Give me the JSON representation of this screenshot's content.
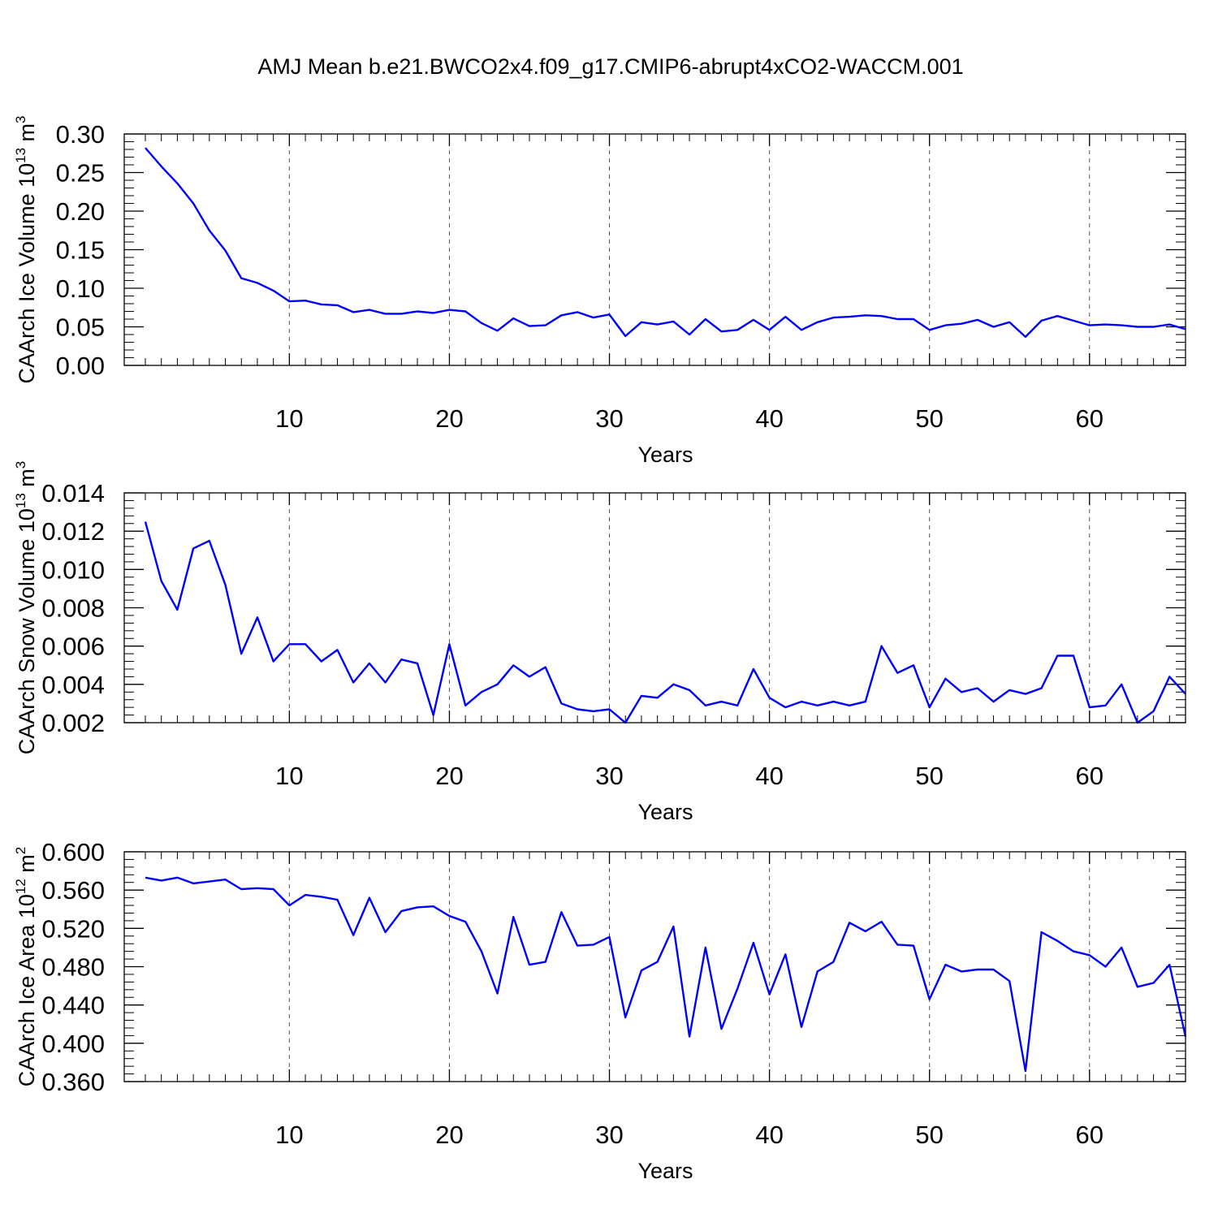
{
  "figure": {
    "title": "AMJ Mean b.e21.BWCO2x4.f09_g17.CMIP6-abrupt4xCO2-WACCM.001",
    "line_color": "#0000ff"
  },
  "chart_data": [
    {
      "type": "line",
      "ylabel_main": "CAArch Ice Volume 10",
      "ylabel_exp": "13",
      "ylabel_unit": "m",
      "ylabel_unit_exp": "3",
      "xlabel": "Years",
      "xlim": [
        1,
        66
      ],
      "ylim": [
        0,
        0.3
      ],
      "xticks": [
        10,
        20,
        30,
        40,
        50,
        60
      ],
      "xtick_labels": [
        "10",
        "20",
        "30",
        "40",
        "50",
        "60"
      ],
      "yticks": [
        0,
        0.05,
        0.1,
        0.15,
        0.2,
        0.25,
        0.3
      ],
      "ytick_labels": [
        "0.00",
        "0.05",
        "0.10",
        "0.15",
        "0.20",
        "0.25",
        "0.30"
      ],
      "grid": "vertical-dashed",
      "series": [
        {
          "x": [
            1,
            2,
            3,
            4,
            5,
            6,
            7,
            8,
            9,
            10,
            11,
            12,
            13,
            14,
            15,
            16,
            17,
            18,
            19,
            20,
            21,
            22,
            23,
            24,
            25,
            26,
            27,
            28,
            29,
            30,
            31,
            32,
            33,
            34,
            35,
            36,
            37,
            38,
            39,
            40,
            41,
            42,
            43,
            44,
            45,
            46,
            47,
            48,
            49,
            50,
            51,
            52,
            53,
            54,
            55,
            56,
            57,
            58,
            59,
            60,
            61,
            62,
            63,
            64,
            65,
            66
          ],
          "y": [
            0.282,
            0.258,
            0.236,
            0.21,
            0.175,
            0.149,
            0.113,
            0.107,
            0.097,
            0.083,
            0.084,
            0.079,
            0.078,
            0.069,
            0.072,
            0.067,
            0.067,
            0.07,
            0.068,
            0.072,
            0.07,
            0.055,
            0.045,
            0.061,
            0.051,
            0.052,
            0.065,
            0.069,
            0.062,
            0.066,
            0.038,
            0.056,
            0.053,
            0.057,
            0.04,
            0.06,
            0.044,
            0.046,
            0.059,
            0.046,
            0.063,
            0.046,
            0.056,
            0.062,
            0.063,
            0.065,
            0.064,
            0.06,
            0.06,
            0.046,
            0.052,
            0.054,
            0.059,
            0.05,
            0.056,
            0.037,
            0.058,
            0.064,
            0.058,
            0.052,
            0.053,
            0.052,
            0.05,
            0.05,
            0.053,
            0.047
          ]
        }
      ]
    },
    {
      "type": "line",
      "ylabel_main": "CAArch Snow Volume 10",
      "ylabel_exp": "13",
      "ylabel_unit": "m",
      "ylabel_unit_exp": "3",
      "xlabel": "Years",
      "xlim": [
        1,
        66
      ],
      "ylim": [
        0.002,
        0.014
      ],
      "xticks": [
        10,
        20,
        30,
        40,
        50,
        60
      ],
      "xtick_labels": [
        "10",
        "20",
        "30",
        "40",
        "50",
        "60"
      ],
      "yticks": [
        0.002,
        0.004,
        0.006,
        0.008,
        0.01,
        0.012,
        0.014
      ],
      "ytick_labels": [
        "0.002",
        "0.004",
        "0.006",
        "0.008",
        "0.010",
        "0.012",
        "0.014"
      ],
      "grid": "vertical-dashed",
      "series": [
        {
          "x": [
            1,
            2,
            3,
            4,
            5,
            6,
            7,
            8,
            9,
            10,
            11,
            12,
            13,
            14,
            15,
            16,
            17,
            18,
            19,
            20,
            21,
            22,
            23,
            24,
            25,
            26,
            27,
            28,
            29,
            30,
            31,
            32,
            33,
            34,
            35,
            36,
            37,
            38,
            39,
            40,
            41,
            42,
            43,
            44,
            45,
            46,
            47,
            48,
            49,
            50,
            51,
            52,
            53,
            54,
            55,
            56,
            57,
            58,
            59,
            60,
            61,
            62,
            63,
            64,
            65,
            66
          ],
          "y": [
            0.0125,
            0.0094,
            0.0079,
            0.0111,
            0.0115,
            0.0092,
            0.0056,
            0.0075,
            0.0052,
            0.0061,
            0.0061,
            0.0052,
            0.0058,
            0.0041,
            0.0051,
            0.0041,
            0.0053,
            0.0051,
            0.0024,
            0.0061,
            0.0029,
            0.0036,
            0.004,
            0.005,
            0.0044,
            0.0049,
            0.003,
            0.0027,
            0.0026,
            0.0027,
            0.002,
            0.0034,
            0.0033,
            0.004,
            0.0037,
            0.0029,
            0.0031,
            0.0029,
            0.0048,
            0.0033,
            0.0028,
            0.0031,
            0.0029,
            0.0031,
            0.0029,
            0.0031,
            0.006,
            0.0046,
            0.005,
            0.0028,
            0.0043,
            0.0036,
            0.0038,
            0.0031,
            0.0037,
            0.0035,
            0.0038,
            0.0055,
            0.0055,
            0.0028,
            0.0029,
            0.004,
            0.002,
            0.0026,
            0.0044,
            0.0035
          ]
        }
      ]
    },
    {
      "type": "line",
      "ylabel_main": "CAArch Ice Area 10",
      "ylabel_exp": "12",
      "ylabel_unit": "m",
      "ylabel_unit_exp": "2",
      "xlabel": "Years",
      "xlim": [
        1,
        66
      ],
      "ylim": [
        0.36,
        0.6
      ],
      "xticks": [
        10,
        20,
        30,
        40,
        50,
        60
      ],
      "xtick_labels": [
        "10",
        "20",
        "30",
        "40",
        "50",
        "60"
      ],
      "yticks": [
        0.36,
        0.4,
        0.44,
        0.48,
        0.52,
        0.56,
        0.6
      ],
      "ytick_labels": [
        "0.360",
        "0.400",
        "0.440",
        "0.480",
        "0.520",
        "0.560",
        "0.600"
      ],
      "grid": "vertical-dashed",
      "series": [
        {
          "x": [
            1,
            2,
            3,
            4,
            5,
            6,
            7,
            8,
            9,
            10,
            11,
            12,
            13,
            14,
            15,
            16,
            17,
            18,
            19,
            20,
            21,
            22,
            23,
            24,
            25,
            26,
            27,
            28,
            29,
            30,
            31,
            32,
            33,
            34,
            35,
            36,
            37,
            38,
            39,
            40,
            41,
            42,
            43,
            44,
            45,
            46,
            47,
            48,
            49,
            50,
            51,
            52,
            53,
            54,
            55,
            56,
            57,
            58,
            59,
            60,
            61,
            62,
            63,
            64,
            65,
            66
          ],
          "y": [
            0.573,
            0.57,
            0.573,
            0.567,
            0.569,
            0.571,
            0.561,
            0.562,
            0.561,
            0.544,
            0.555,
            0.553,
            0.55,
            0.513,
            0.552,
            0.516,
            0.538,
            0.542,
            0.543,
            0.533,
            0.527,
            0.496,
            0.452,
            0.532,
            0.482,
            0.485,
            0.537,
            0.502,
            0.503,
            0.511,
            0.427,
            0.476,
            0.485,
            0.522,
            0.407,
            0.5,
            0.415,
            0.457,
            0.505,
            0.451,
            0.493,
            0.417,
            0.475,
            0.485,
            0.526,
            0.517,
            0.527,
            0.503,
            0.502,
            0.446,
            0.482,
            0.475,
            0.477,
            0.477,
            0.465,
            0.371,
            0.516,
            0.507,
            0.496,
            0.492,
            0.48,
            0.5,
            0.459,
            0.463,
            0.482,
            0.407
          ]
        }
      ]
    }
  ]
}
